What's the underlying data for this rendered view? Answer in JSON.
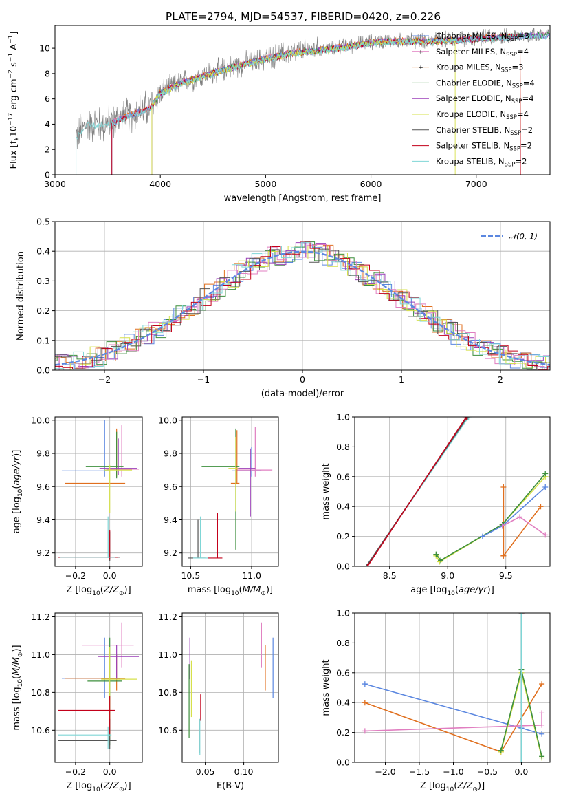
{
  "colors": {
    "blue": "#5b87e0",
    "orange": "#e06f1e",
    "green": "#3d8f3d",
    "purple": "#9b3fb8",
    "pink": "#e07ec0",
    "yellow": "#d6e04a",
    "gray": "#555555",
    "red": "#c3001a",
    "cyan": "#7fd6d6"
  },
  "page": {
    "title": "PLATE=2794, MJD=54537, FIBERID=0420, z=0.226"
  },
  "chart_data": [
    {
      "id": "spectrum",
      "type": "line",
      "title": "PLATE=2794, MJD=54537, FIBERID=0420, z=0.226",
      "xlabel": "wavelength [Angstrom, rest frame]",
      "ylabel": "Flux [f_λ 10^-17 erg cm^-2 s^-1 A^-1]",
      "xlim": [
        3000,
        7700
      ],
      "ylim": [
        0,
        11.8
      ],
      "xticks": [
        "3000",
        "4000",
        "5000",
        "6000",
        "7000"
      ],
      "yticks": [
        "0",
        "2",
        "4",
        "6",
        "8",
        "10"
      ],
      "legend_position": "top-right",
      "legend": [
        {
          "label": "Chabrier MILES, N",
          "sub": "SSP",
          "suffix": "=3",
          "color": "blue"
        },
        {
          "label": "Salpeter MILES, N",
          "sub": "SSP",
          "suffix": "=4",
          "color": "pink"
        },
        {
          "label": "Kroupa MILES, N",
          "sub": "SSP",
          "suffix": "=3",
          "color": "orange"
        },
        {
          "label": "Chabrier ELODIE, N",
          "sub": "SSP",
          "suffix": "=4",
          "color": "green"
        },
        {
          "label": "Salpeter ELODIE, N",
          "sub": "SSP",
          "suffix": "=4",
          "color": "purple"
        },
        {
          "label": "Kroupa ELODIE, N",
          "sub": "SSP",
          "suffix": "=4",
          "color": "yellow"
        },
        {
          "label": "Chabrier STELIB, N",
          "sub": "SSP",
          "suffix": "=2",
          "color": "gray"
        },
        {
          "label": "Salpeter STELIB, N",
          "sub": "SSP",
          "suffix": "=2",
          "color": "red"
        },
        {
          "label": "Kroupa STELIB, N",
          "sub": "SSP",
          "suffix": "=2",
          "color": "cyan"
        }
      ],
      "continuum": [
        [
          3200,
          3.0
        ],
        [
          3300,
          4.0
        ],
        [
          3500,
          4.0
        ],
        [
          3700,
          4.7
        ],
        [
          3900,
          5.3
        ],
        [
          4000,
          6.5
        ],
        [
          4200,
          7.3
        ],
        [
          4500,
          8.1
        ],
        [
          4800,
          8.8
        ],
        [
          5000,
          9.2
        ],
        [
          5200,
          9.6
        ],
        [
          5500,
          9.9
        ],
        [
          5800,
          10.2
        ],
        [
          6000,
          10.5
        ],
        [
          6200,
          10.6
        ],
        [
          6600,
          10.6
        ],
        [
          7000,
          10.8
        ],
        [
          7400,
          11.0
        ],
        [
          7700,
          11.1
        ]
      ],
      "model_starts": {
        "cyan": 3200,
        "orange": 3540,
        "yellow": 3920,
        "green": 3920,
        "purple": 3920,
        "pink": 3540,
        "blue": 3540,
        "red": 3540
      },
      "model_ends": {
        "yellow": 6800,
        "orange": 7420,
        "red": 7420,
        "cyan": 7700,
        "blue": 7700,
        "pink": 7700,
        "green": 7700,
        "purple": 7700
      }
    },
    {
      "id": "residuals",
      "type": "area",
      "xlabel": "(data-model)/error",
      "ylabel": "Normed distribution",
      "xlim": [
        -2.5,
        2.5
      ],
      "ylim": [
        0,
        0.5
      ],
      "xticks": [
        "−2",
        "−1",
        "0",
        "1",
        "2"
      ],
      "yticks": [
        "0.0",
        "0.1",
        "0.2",
        "0.3",
        "0.4",
        "0.5"
      ],
      "grid": true,
      "legend_position": "top-right",
      "legend": [
        {
          "label": "𝒩(0, 1)",
          "color": "#5b87e0"
        }
      ]
    },
    {
      "id": "age_vs_Z",
      "type": "scatter",
      "xlabel": "Z [log10(Z/Z☉)]",
      "ylabel": "age [log10(age/yr)]",
      "xlim": [
        -0.32,
        0.19
      ],
      "ylim": [
        9.12,
        10.02
      ],
      "xticks": [
        "−0.2",
        "0.0"
      ],
      "yticks": [
        "9.2",
        "9.4",
        "9.6",
        "9.8",
        "10.0"
      ],
      "grid": true
    },
    {
      "id": "age_vs_mass",
      "type": "scatter",
      "xlabel": "mass [log10(M/M☉)]",
      "ylabel": "",
      "xlim": [
        10.43,
        11.22
      ],
      "ylim": [
        9.12,
        10.02
      ],
      "xticks": [
        "10.5",
        "11.0"
      ],
      "yticks": [
        "9.2",
        "9.4",
        "9.6",
        "9.8",
        "10.0"
      ],
      "grid": true
    },
    {
      "id": "weight_vs_age",
      "type": "line",
      "xlabel": "age [log10(age/yr)]",
      "ylabel": "mass weight",
      "xlim": [
        8.2,
        9.88
      ],
      "ylim": [
        0,
        1.0
      ],
      "xticks": [
        "8.5",
        "9.0",
        "9.5"
      ],
      "yticks": [
        "0.0",
        "0.2",
        "0.4",
        "0.6",
        "0.8",
        "1.0"
      ],
      "grid": true
    },
    {
      "id": "mass_vs_Z",
      "type": "scatter",
      "xlabel": "Z [log10(Z/Z☉)]",
      "ylabel": "mass [log10(M/M☉)]",
      "xlim": [
        -0.32,
        0.19
      ],
      "ylim": [
        10.43,
        11.22
      ],
      "xticks": [
        "−0.2",
        "0.0"
      ],
      "yticks": [
        "10.6",
        "10.8",
        "11.0",
        "11.2"
      ],
      "grid": true
    },
    {
      "id": "mass_vs_ebv",
      "type": "scatter",
      "xlabel": "E(B-V)",
      "ylabel": "",
      "xlim": [
        0.02,
        0.145
      ],
      "ylim": [
        10.43,
        11.22
      ],
      "xticks": [
        "0.05",
        "0.10"
      ],
      "yticks": [
        "10.6",
        "10.8",
        "11.0",
        "11.2"
      ],
      "grid": true
    },
    {
      "id": "weight_vs_Z",
      "type": "line",
      "xlabel": "Z [log10(Z/Z☉)]",
      "ylabel": "mass weight",
      "xlim": [
        -2.45,
        0.42
      ],
      "ylim": [
        0,
        1.0
      ],
      "xticks": [
        "−2.0",
        "−1.5",
        "−1.0",
        "−0.5",
        "0.0"
      ],
      "yticks": [
        "0.0",
        "0.2",
        "0.4",
        "0.6",
        "0.8",
        "1.0"
      ],
      "grid": true
    }
  ]
}
